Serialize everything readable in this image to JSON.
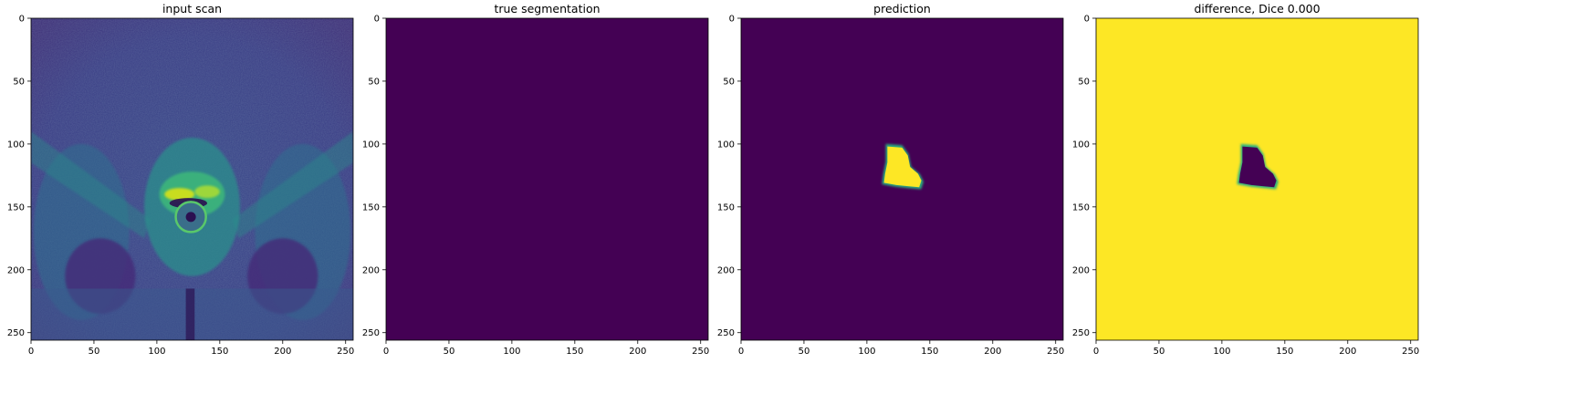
{
  "panels": [
    {
      "title": "input scan",
      "kind": "mri-scan",
      "x_ticks": [
        0,
        50,
        100,
        150,
        200,
        250
      ],
      "y_ticks": [
        0,
        50,
        100,
        150,
        200,
        250
      ],
      "extent": [
        0,
        256
      ]
    },
    {
      "title": "true segmentation",
      "kind": "empty-mask",
      "x_ticks": [
        0,
        50,
        100,
        150,
        200,
        250
      ],
      "y_ticks": [
        0,
        50,
        100,
        150,
        200,
        250
      ],
      "extent": [
        0,
        256
      ]
    },
    {
      "title": "prediction",
      "kind": "blob-on-dark",
      "x_ticks": [
        0,
        50,
        100,
        150,
        200,
        250
      ],
      "y_ticks": [
        0,
        50,
        100,
        150,
        200,
        250
      ],
      "extent": [
        0,
        256
      ]
    },
    {
      "title": "difference, Dice 0.000",
      "kind": "blob-on-light",
      "x_ticks": [
        0,
        50,
        100,
        150,
        200,
        250
      ],
      "y_ticks": [
        0,
        50,
        100,
        150,
        200,
        250
      ],
      "extent": [
        0,
        256
      ]
    }
  ],
  "colormap": "viridis",
  "colors": {
    "dark": "#440154",
    "light": "#fde725"
  },
  "blob_outline": [
    [
      115,
      100
    ],
    [
      128,
      101
    ],
    [
      133,
      108
    ],
    [
      135,
      118
    ],
    [
      142,
      124
    ],
    [
      145,
      130
    ],
    [
      143,
      136
    ],
    [
      133,
      135
    ],
    [
      123,
      134
    ],
    [
      112,
      132
    ],
    [
      113,
      124
    ],
    [
      115,
      114
    ]
  ]
}
